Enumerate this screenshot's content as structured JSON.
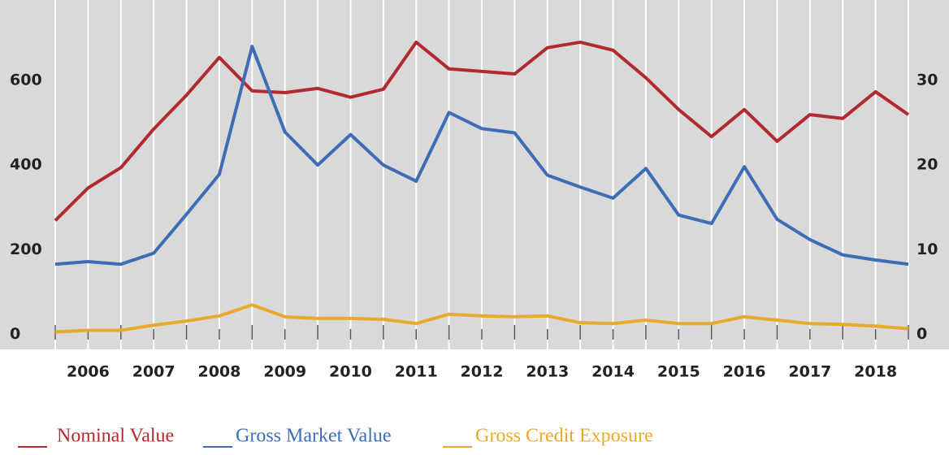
{
  "chart_data": {
    "type": "line",
    "categories": [
      null,
      "2006",
      null,
      "2007",
      null,
      "2008",
      null,
      "2009",
      null,
      "2010",
      null,
      "2011",
      null,
      "2012",
      null,
      "2013",
      null,
      "2014",
      null,
      "2015",
      null,
      "2016",
      null,
      "2017",
      null,
      "2018",
      null
    ],
    "series": [
      {
        "name": "Nominal Value",
        "color": "#b02a2f",
        "values": [
          269,
          346,
          394,
          485,
          565,
          654,
          575,
          571,
          581,
          560,
          579,
          690,
          627,
          621,
          615,
          677,
          690,
          671,
          606,
          531,
          467,
          531,
          456,
          519,
          510,
          573,
          519
        ]
      },
      {
        "name": "Gross Market Value",
        "color": "#3d6db5",
        "axis": "y2",
        "values": [
          8.3,
          8.6,
          8.3,
          9.6,
          14.2,
          18.9,
          34.0,
          23.9,
          20.0,
          23.6,
          20.0,
          18.1,
          26.2,
          24.3,
          23.8,
          18.8,
          17.4,
          16.1,
          19.6,
          14.1,
          13.1,
          19.8,
          13.6,
          11.2,
          9.4,
          8.8,
          8.3
        ]
      },
      {
        "name": "Gross Credit Exposure",
        "color": "#e8aa2c",
        "axis": "y2",
        "values": [
          0.3,
          0.5,
          0.5,
          1.1,
          1.6,
          2.2,
          3.5,
          2.1,
          1.9,
          1.9,
          1.8,
          1.3,
          2.4,
          2.2,
          2.1,
          2.2,
          1.4,
          1.3,
          1.7,
          1.3,
          1.3,
          2.1,
          1.7,
          1.3,
          1.2,
          1.0,
          0.7
        ]
      }
    ],
    "ylim": [
      -35,
      780
    ],
    "yticks": [
      0,
      200,
      400,
      600
    ],
    "y2lim": [
      -1.75,
      39
    ],
    "y2ticks": [
      0,
      10,
      20,
      30
    ],
    "grid": "x"
  }
}
